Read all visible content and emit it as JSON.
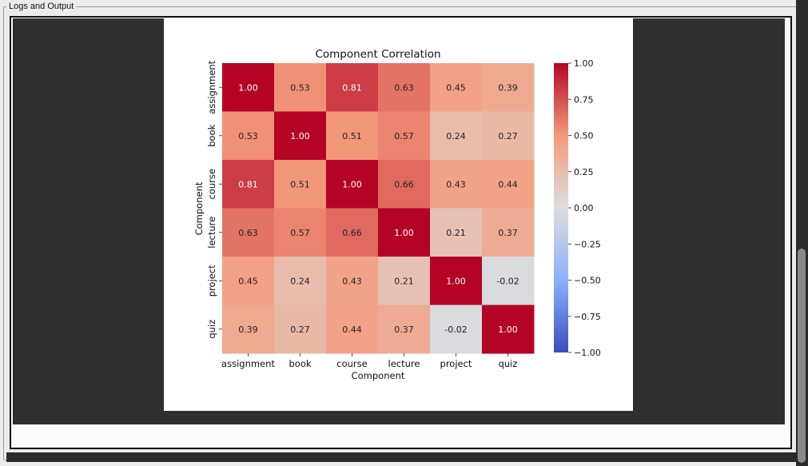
{
  "panel": {
    "title": "Logs and Output"
  },
  "chart_data": {
    "type": "heatmap",
    "title": "Component Correlation",
    "xlabel": "Component",
    "ylabel": "Component",
    "categories": [
      "assignment",
      "book",
      "course",
      "lecture",
      "project",
      "quiz"
    ],
    "matrix": [
      [
        1.0,
        0.53,
        0.81,
        0.63,
        0.45,
        0.39
      ],
      [
        0.53,
        1.0,
        0.51,
        0.57,
        0.24,
        0.27
      ],
      [
        0.81,
        0.51,
        1.0,
        0.66,
        0.43,
        0.44
      ],
      [
        0.63,
        0.57,
        0.66,
        1.0,
        0.21,
        0.37
      ],
      [
        0.45,
        0.24,
        0.43,
        0.21,
        1.0,
        -0.02
      ],
      [
        0.39,
        0.27,
        0.44,
        0.37,
        -0.02,
        1.0
      ]
    ],
    "annotations": [
      [
        "1.00",
        "0.53",
        "0.81",
        "0.63",
        "0.45",
        "0.39"
      ],
      [
        "0.53",
        "1.00",
        "0.51",
        "0.57",
        "0.24",
        "0.27"
      ],
      [
        "0.81",
        "0.51",
        "1.00",
        "0.66",
        "0.43",
        "0.44"
      ],
      [
        "0.63",
        "0.57",
        "0.66",
        "1.00",
        "0.21",
        "0.37"
      ],
      [
        "0.45",
        "0.24",
        "0.43",
        "0.21",
        "1.00",
        "-0.02"
      ],
      [
        "0.39",
        "0.27",
        "0.44",
        "0.37",
        "-0.02",
        "1.00"
      ]
    ],
    "vmin": -1.0,
    "vmax": 1.0,
    "colormap": "coolwarm",
    "colorbar_ticks": [
      1.0,
      0.75,
      0.5,
      0.25,
      0.0,
      -0.25,
      -0.5,
      -0.75,
      -1.0
    ],
    "colorbar_tick_labels": [
      "1.00",
      "0.75",
      "0.50",
      "0.25",
      "0.00",
      "−0.25",
      "−0.50",
      "−0.75",
      "−1.00"
    ]
  }
}
